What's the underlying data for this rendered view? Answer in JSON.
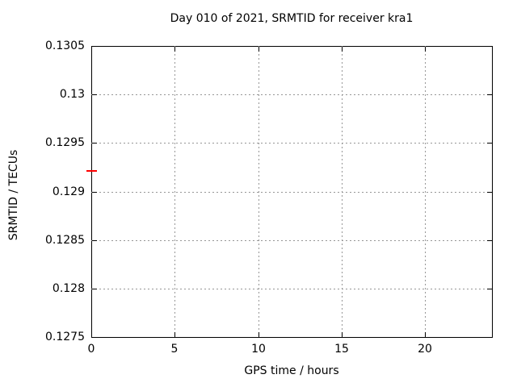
{
  "page": {
    "background": "#ffffff"
  },
  "chart_data": {
    "type": "scatter",
    "title": "Day 010 of 2021, SRMTID for receiver kra1",
    "xlabel": "GPS time / hours",
    "ylabel": "SRMTID / TECUs",
    "xlim": [
      0,
      24
    ],
    "ylim": [
      0.1275,
      0.1305
    ],
    "xticks": [
      {
        "value": 0,
        "label": "0"
      },
      {
        "value": 5,
        "label": "5"
      },
      {
        "value": 10,
        "label": "10"
      },
      {
        "value": 15,
        "label": "15"
      },
      {
        "value": 20,
        "label": "20"
      }
    ],
    "yticks": [
      {
        "value": 0.1275,
        "label": "0.1275"
      },
      {
        "value": 0.128,
        "label": "0.128"
      },
      {
        "value": 0.1285,
        "label": "0.1285"
      },
      {
        "value": 0.129,
        "label": "0.129"
      },
      {
        "value": 0.1295,
        "label": "0.1295"
      },
      {
        "value": 0.13,
        "label": "0.13"
      },
      {
        "value": 0.1305,
        "label": "0.1305"
      }
    ],
    "grid": true,
    "legend_position": "none",
    "series": [
      {
        "name": "SRMTID",
        "marker": "horizontal-dash",
        "color": "#ff0000",
        "points": [
          {
            "x": 0,
            "y": 0.12921
          }
        ]
      }
    ],
    "colors": {
      "axis": "#000000",
      "grid": "#969696",
      "text": "#000000",
      "marker": "#ff0000"
    }
  }
}
